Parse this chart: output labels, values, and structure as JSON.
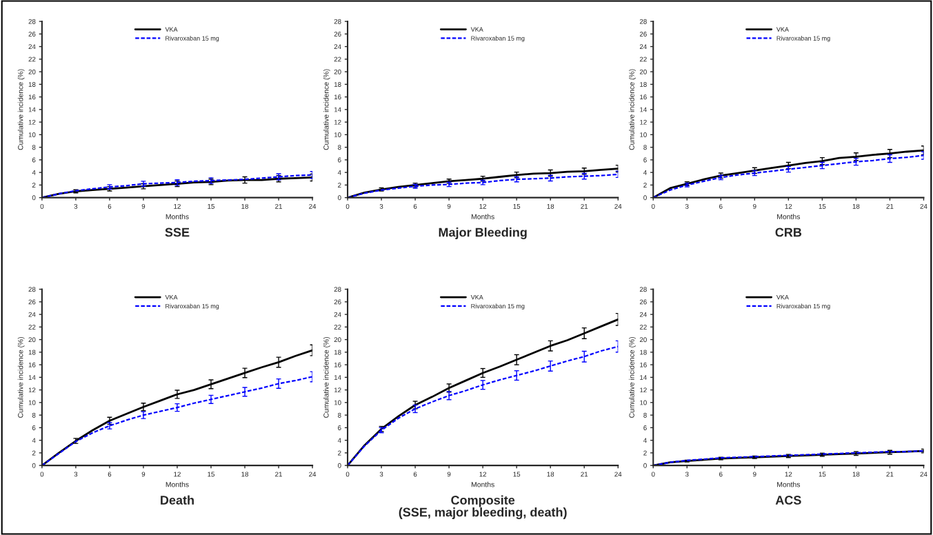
{
  "chart_data": [
    {
      "type": "line",
      "title": "SSE",
      "xlabel": "Months",
      "ylabel": "Cumulative incidence (%)",
      "x": [
        0,
        1.5,
        3,
        4.5,
        6,
        7.5,
        9,
        10.5,
        12,
        13.5,
        15,
        16.5,
        18,
        19.5,
        21,
        22.5,
        24
      ],
      "xlim": [
        0,
        24
      ],
      "xticks": [
        0,
        3,
        6,
        9,
        12,
        15,
        18,
        21,
        24
      ],
      "ylim": [
        0,
        28
      ],
      "yticks": [
        0,
        2,
        4,
        6,
        8,
        10,
        12,
        14,
        16,
        18,
        20,
        22,
        24,
        26,
        28
      ],
      "legend": "top",
      "grid": false,
      "series": [
        {
          "name": "VKA",
          "color": "#000000",
          "line_style": "solid",
          "values": [
            0,
            0.6,
            1.0,
            1.2,
            1.4,
            1.6,
            1.8,
            2.0,
            2.2,
            2.4,
            2.5,
            2.7,
            2.8,
            2.8,
            3.0,
            3.1,
            3.2
          ],
          "errors": [
            null,
            null,
            0.25,
            null,
            0.35,
            null,
            0.4,
            null,
            0.45,
            null,
            0.45,
            null,
            0.5,
            null,
            0.5,
            null,
            0.55
          ]
        },
        {
          "name": "Rivaroxaban 15 mg",
          "color": "#0000ff",
          "line_style": "dashed",
          "values": [
            0,
            0.6,
            1.1,
            1.4,
            1.7,
            1.9,
            2.2,
            2.3,
            2.4,
            2.6,
            2.7,
            2.8,
            2.9,
            3.1,
            3.3,
            3.5,
            3.6
          ],
          "errors": [
            null,
            null,
            null,
            null,
            0.35,
            null,
            0.4,
            null,
            0.45,
            null,
            0.45,
            null,
            null,
            null,
            0.5,
            null,
            0.55
          ]
        }
      ]
    },
    {
      "type": "line",
      "title": "Major Bleeding",
      "xlabel": "Months",
      "ylabel": "Cumulative incidence (%)",
      "x": [
        0,
        1.5,
        3,
        4.5,
        6,
        7.5,
        9,
        10.5,
        12,
        13.5,
        15,
        16.5,
        18,
        19.5,
        21,
        22.5,
        24
      ],
      "xlim": [
        0,
        24
      ],
      "xticks": [
        0,
        3,
        6,
        9,
        12,
        15,
        18,
        21,
        24
      ],
      "ylim": [
        0,
        28
      ],
      "yticks": [
        0,
        2,
        4,
        6,
        8,
        10,
        12,
        14,
        16,
        18,
        20,
        22,
        24,
        26,
        28
      ],
      "legend": "top",
      "grid": false,
      "series": [
        {
          "name": "VKA",
          "color": "#000000",
          "line_style": "solid",
          "values": [
            0,
            0.8,
            1.3,
            1.7,
            2.0,
            2.3,
            2.6,
            2.8,
            3.0,
            3.3,
            3.6,
            3.8,
            3.9,
            4.1,
            4.2,
            4.4,
            4.6
          ],
          "errors": [
            null,
            null,
            0.25,
            null,
            0.3,
            null,
            0.35,
            null,
            0.4,
            null,
            0.45,
            null,
            0.5,
            null,
            0.5,
            null,
            0.55
          ]
        },
        {
          "name": "Rivaroxaban 15 mg",
          "color": "#0000ff",
          "line_style": "dashed",
          "values": [
            0,
            0.7,
            1.2,
            1.5,
            1.8,
            2.0,
            2.1,
            2.3,
            2.4,
            2.7,
            2.9,
            3.0,
            3.1,
            3.3,
            3.4,
            3.5,
            3.7
          ],
          "errors": [
            null,
            null,
            null,
            null,
            0.3,
            null,
            0.35,
            null,
            0.35,
            null,
            0.4,
            null,
            0.45,
            null,
            0.45,
            null,
            0.5
          ]
        }
      ]
    },
    {
      "type": "line",
      "title": "CRB",
      "xlabel": "Months",
      "ylabel": "Cumulative incidence (%)",
      "x": [
        0,
        1.5,
        3,
        4.5,
        6,
        7.5,
        9,
        10.5,
        12,
        13.5,
        15,
        16.5,
        18,
        19.5,
        21,
        22.5,
        24
      ],
      "xlim": [
        0,
        24
      ],
      "xticks": [
        0,
        3,
        6,
        9,
        12,
        15,
        18,
        21,
        24
      ],
      "ylim": [
        0,
        28
      ],
      "yticks": [
        0,
        2,
        4,
        6,
        8,
        10,
        12,
        14,
        16,
        18,
        20,
        22,
        24,
        26,
        28
      ],
      "legend": "top",
      "grid": false,
      "series": [
        {
          "name": "VKA",
          "color": "#000000",
          "line_style": "solid",
          "values": [
            0,
            1.5,
            2.2,
            2.9,
            3.5,
            3.9,
            4.3,
            4.7,
            5.1,
            5.5,
            5.8,
            6.3,
            6.5,
            6.8,
            7.0,
            7.3,
            7.5
          ],
          "errors": [
            null,
            null,
            0.3,
            null,
            0.4,
            null,
            0.45,
            null,
            0.5,
            null,
            0.55,
            null,
            0.6,
            null,
            0.65,
            null,
            0.7
          ]
        },
        {
          "name": "Rivaroxaban 15 mg",
          "color": "#0000ff",
          "line_style": "dashed",
          "values": [
            0,
            1.2,
            2.0,
            2.6,
            3.2,
            3.6,
            3.9,
            4.2,
            4.5,
            4.8,
            5.1,
            5.4,
            5.7,
            5.9,
            6.2,
            6.4,
            6.7
          ],
          "errors": [
            null,
            null,
            0.3,
            null,
            0.35,
            null,
            0.4,
            null,
            0.45,
            null,
            0.5,
            null,
            0.55,
            null,
            0.6,
            null,
            0.6
          ]
        }
      ]
    },
    {
      "type": "line",
      "title": "Death",
      "xlabel": "Months",
      "ylabel": "Cumulative incidence (%)",
      "x": [
        0,
        1.5,
        3,
        4.5,
        6,
        7.5,
        9,
        10.5,
        12,
        13.5,
        15,
        16.5,
        18,
        19.5,
        21,
        22.5,
        24
      ],
      "xlim": [
        0,
        24
      ],
      "xticks": [
        0,
        3,
        6,
        9,
        12,
        15,
        18,
        21,
        24
      ],
      "ylim": [
        0,
        28
      ],
      "yticks": [
        0,
        2,
        4,
        6,
        8,
        10,
        12,
        14,
        16,
        18,
        20,
        22,
        24,
        26,
        28
      ],
      "legend": "top",
      "grid": false,
      "series": [
        {
          "name": "VKA",
          "color": "#000000",
          "line_style": "solid",
          "values": [
            0,
            2.0,
            3.9,
            5.6,
            7.1,
            8.2,
            9.3,
            10.3,
            11.3,
            12.0,
            12.9,
            13.8,
            14.7,
            15.6,
            16.4,
            17.4,
            18.3
          ],
          "errors": [
            null,
            null,
            0.4,
            null,
            0.55,
            null,
            0.6,
            null,
            0.65,
            null,
            0.7,
            null,
            0.75,
            null,
            0.8,
            null,
            0.85
          ]
        },
        {
          "name": "Rivaroxaban 15 mg",
          "color": "#0000ff",
          "line_style": "dashed",
          "values": [
            0,
            1.9,
            3.8,
            5.2,
            6.3,
            7.2,
            8.0,
            8.6,
            9.2,
            9.9,
            10.5,
            11.1,
            11.7,
            12.3,
            13.0,
            13.5,
            14.1
          ],
          "errors": [
            null,
            null,
            null,
            null,
            0.5,
            null,
            0.55,
            null,
            0.6,
            null,
            0.65,
            null,
            0.7,
            null,
            0.75,
            null,
            0.8
          ]
        }
      ]
    },
    {
      "type": "line",
      "title": "Composite\n(SSE, major bleeding, death)",
      "xlabel": "Months",
      "ylabel": "Cumulative incidence (%)",
      "x": [
        0,
        1.5,
        3,
        4.5,
        6,
        7.5,
        9,
        10.5,
        12,
        13.5,
        15,
        16.5,
        18,
        19.5,
        21,
        22.5,
        24
      ],
      "xlim": [
        0,
        24
      ],
      "xticks": [
        0,
        3,
        6,
        9,
        12,
        15,
        18,
        21,
        24
      ],
      "ylim": [
        0,
        28
      ],
      "yticks": [
        0,
        2,
        4,
        6,
        8,
        10,
        12,
        14,
        16,
        18,
        20,
        22,
        24,
        26,
        28
      ],
      "legend": "top",
      "grid": false,
      "series": [
        {
          "name": "VKA",
          "color": "#000000",
          "line_style": "solid",
          "values": [
            0,
            3.2,
            5.8,
            7.8,
            9.6,
            10.9,
            12.3,
            13.5,
            14.7,
            15.7,
            16.8,
            17.9,
            19.0,
            19.9,
            21.0,
            22.1,
            23.2
          ],
          "errors": [
            null,
            null,
            0.4,
            null,
            0.6,
            null,
            0.65,
            null,
            0.7,
            null,
            0.8,
            null,
            0.8,
            null,
            0.85,
            null,
            0.95
          ]
        },
        {
          "name": "Rivaroxaban 15 mg",
          "color": "#0000ff",
          "line_style": "dashed",
          "values": [
            0,
            3.1,
            5.6,
            7.5,
            9.0,
            10.1,
            11.1,
            11.9,
            12.8,
            13.6,
            14.3,
            15.0,
            15.8,
            16.6,
            17.3,
            18.2,
            18.9
          ],
          "errors": [
            null,
            null,
            0.4,
            null,
            0.6,
            null,
            0.65,
            null,
            0.7,
            null,
            0.75,
            null,
            0.8,
            null,
            0.85,
            null,
            0.9
          ]
        }
      ]
    },
    {
      "type": "line",
      "title": "ACS",
      "xlabel": "Months",
      "ylabel": "Cumulative incidence (%)",
      "x": [
        0,
        1.5,
        3,
        4.5,
        6,
        7.5,
        9,
        10.5,
        12,
        13.5,
        15,
        16.5,
        18,
        19.5,
        21,
        22.5,
        24
      ],
      "xlim": [
        0,
        24
      ],
      "xticks": [
        0,
        3,
        6,
        9,
        12,
        15,
        18,
        21,
        24
      ],
      "ylim": [
        0,
        28
      ],
      "yticks": [
        0,
        2,
        4,
        6,
        8,
        10,
        12,
        14,
        16,
        18,
        20,
        22,
        24,
        26,
        28
      ],
      "legend": "top",
      "grid": false,
      "series": [
        {
          "name": "VKA",
          "color": "#000000",
          "line_style": "solid",
          "values": [
            0,
            0.5,
            0.7,
            0.9,
            1.1,
            1.2,
            1.3,
            1.4,
            1.5,
            1.6,
            1.7,
            1.8,
            1.9,
            2.0,
            2.1,
            2.2,
            2.3
          ],
          "errors": [
            null,
            null,
            0.15,
            null,
            0.2,
            null,
            0.2,
            null,
            0.25,
            null,
            0.25,
            null,
            0.3,
            null,
            0.3,
            null,
            0.3
          ]
        },
        {
          "name": "Rivaroxaban 15 mg",
          "color": "#0000ff",
          "line_style": "dashed",
          "values": [
            0,
            0.5,
            0.8,
            1.0,
            1.2,
            1.3,
            1.4,
            1.5,
            1.6,
            1.7,
            1.8,
            1.9,
            2.0,
            2.1,
            2.2,
            2.2,
            2.3
          ]
        }
      ]
    }
  ]
}
